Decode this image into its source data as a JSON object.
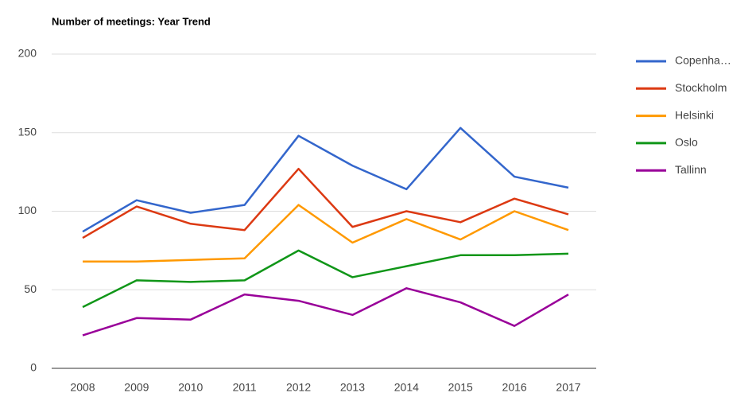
{
  "chart_data": {
    "type": "line",
    "title": "Number of meetings: Year Trend",
    "categories": [
      "2008",
      "2009",
      "2010",
      "2011",
      "2012",
      "2013",
      "2014",
      "2015",
      "2016",
      "2017"
    ],
    "series": [
      {
        "name": "Copenha…",
        "color": "#3366cc",
        "values": [
          87,
          107,
          99,
          104,
          148,
          129,
          114,
          153,
          122,
          115
        ]
      },
      {
        "name": "Stockholm",
        "color": "#dc3912",
        "values": [
          83,
          103,
          92,
          88,
          127,
          90,
          100,
          93,
          108,
          98
        ]
      },
      {
        "name": "Helsinki",
        "color": "#ff9900",
        "values": [
          68,
          68,
          69,
          70,
          104,
          80,
          95,
          82,
          100,
          88
        ]
      },
      {
        "name": "Oslo",
        "color": "#109618",
        "values": [
          39,
          56,
          55,
          56,
          75,
          58,
          65,
          72,
          72,
          73
        ]
      },
      {
        "name": "Tallinn",
        "color": "#990099",
        "values": [
          21,
          32,
          31,
          47,
          43,
          34,
          51,
          42,
          27,
          47
        ]
      }
    ],
    "ylim": [
      0,
      200
    ],
    "yticks": [
      0,
      50,
      100,
      150,
      200
    ],
    "grid": true,
    "legend": "right"
  }
}
